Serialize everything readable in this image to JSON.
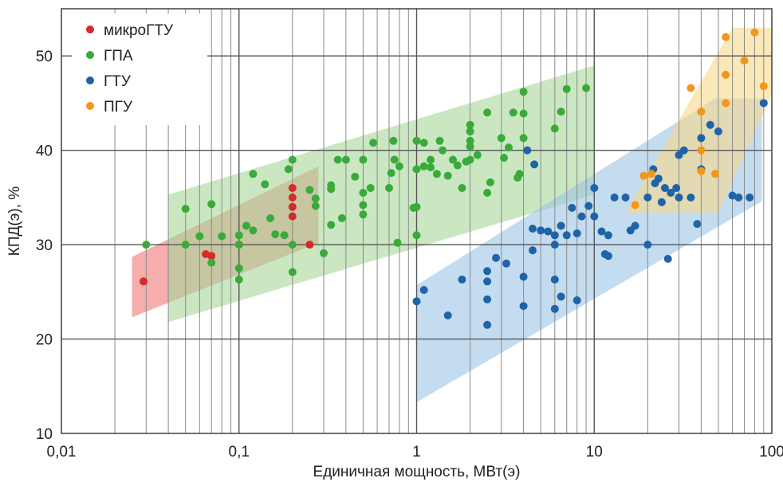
{
  "chart_data": {
    "type": "scatter",
    "xscale": "log",
    "xlim": [
      0.01,
      100
    ],
    "ylim": [
      10,
      55
    ],
    "xlabel": "Единичная мощность, МВт(э)",
    "ylabel": "КПД(э), %",
    "grid": true,
    "legend_position": "top-left",
    "x_ticks": [
      {
        "value": 0.01,
        "label": "0,01"
      },
      {
        "value": 0.1,
        "label": "0,1"
      },
      {
        "value": 1,
        "label": "1"
      },
      {
        "value": 10,
        "label": "10"
      },
      {
        "value": 100,
        "label": "100"
      }
    ],
    "y_ticks": [
      {
        "value": 10,
        "label": "10"
      },
      {
        "value": 20,
        "label": "20"
      },
      {
        "value": 30,
        "label": "30"
      },
      {
        "value": 40,
        "label": "40"
      },
      {
        "value": 50,
        "label": "50"
      }
    ],
    "series": [
      {
        "name": "микроГТУ",
        "color": "#d42a2a",
        "band_color": "#ef7777",
        "band": [
          [
            0.025,
            22.3
          ],
          [
            0.025,
            28.7
          ],
          [
            0.28,
            38.3
          ],
          [
            0.28,
            30.2
          ]
        ],
        "points": [
          [
            0.029,
            26.1
          ],
          [
            0.065,
            29.0
          ],
          [
            0.07,
            28.8
          ],
          [
            0.1,
            30.0
          ],
          [
            0.2,
            36.0
          ],
          [
            0.2,
            35.0
          ],
          [
            0.2,
            34.0
          ],
          [
            0.2,
            33.0
          ],
          [
            0.25,
            30.0
          ]
        ]
      },
      {
        "name": "ГПА",
        "color": "#3aaa3a",
        "band_color": "#a6d79a",
        "band": [
          [
            0.04,
            21.8
          ],
          [
            0.04,
            35.3
          ],
          [
            10,
            49.0
          ],
          [
            10,
            35.3
          ]
        ],
        "points": [
          [
            0.03,
            30.0
          ],
          [
            0.05,
            33.8
          ],
          [
            0.05,
            30.0
          ],
          [
            0.06,
            30.9
          ],
          [
            0.07,
            34.3
          ],
          [
            0.07,
            28.1
          ],
          [
            0.08,
            30.9
          ],
          [
            0.1,
            30.0
          ],
          [
            0.1,
            31.0
          ],
          [
            0.1,
            27.5
          ],
          [
            0.1,
            26.3
          ],
          [
            0.11,
            32.0
          ],
          [
            0.12,
            37.5
          ],
          [
            0.12,
            31.5
          ],
          [
            0.14,
            36.4
          ],
          [
            0.15,
            32.8
          ],
          [
            0.16,
            31.1
          ],
          [
            0.18,
            31.0
          ],
          [
            0.19,
            38.0
          ],
          [
            0.2,
            39.0
          ],
          [
            0.2,
            30.0
          ],
          [
            0.2,
            27.1
          ],
          [
            0.25,
            35.8
          ],
          [
            0.27,
            34.9
          ],
          [
            0.27,
            34.1
          ],
          [
            0.3,
            29.1
          ],
          [
            0.33,
            35.9
          ],
          [
            0.33,
            36.3
          ],
          [
            0.36,
            39.0
          ],
          [
            0.4,
            39.0
          ],
          [
            0.38,
            32.8
          ],
          [
            0.33,
            32.1
          ],
          [
            0.45,
            37.2
          ],
          [
            0.5,
            39.0
          ],
          [
            0.5,
            34.2
          ],
          [
            0.5,
            35.5
          ],
          [
            0.5,
            33.2
          ],
          [
            0.55,
            36.0
          ],
          [
            0.57,
            40.8
          ],
          [
            0.7,
            36.0
          ],
          [
            0.72,
            37.6
          ],
          [
            0.75,
            39.0
          ],
          [
            0.74,
            41.0
          ],
          [
            0.8,
            38.3
          ],
          [
            0.78,
            30.2
          ],
          [
            1.0,
            34.0
          ],
          [
            1.0,
            38.0
          ],
          [
            1.0,
            41.0
          ],
          [
            1.0,
            31.0
          ],
          [
            0.96,
            33.9
          ],
          [
            1.1,
            40.8
          ],
          [
            1.1,
            38.3
          ],
          [
            1.2,
            39.0
          ],
          [
            1.2,
            38.2
          ],
          [
            1.3,
            37.5
          ],
          [
            1.35,
            41.0
          ],
          [
            1.4,
            40.0
          ],
          [
            1.5,
            37.3
          ],
          [
            1.6,
            39.0
          ],
          [
            1.8,
            36.0
          ],
          [
            1.9,
            38.8
          ],
          [
            1.7,
            38.4
          ],
          [
            2.0,
            40.4
          ],
          [
            2.0,
            41.0
          ],
          [
            2.0,
            42.0
          ],
          [
            2.0,
            42.7
          ],
          [
            2.0,
            39.0
          ],
          [
            2.2,
            39.5
          ],
          [
            2.5,
            44.0
          ],
          [
            2.5,
            35.5
          ],
          [
            3.0,
            41.3
          ],
          [
            3.3,
            40.3
          ],
          [
            3.5,
            44.0
          ],
          [
            4.0,
            43.9
          ],
          [
            4.0,
            46.2
          ],
          [
            4.0,
            41.3
          ],
          [
            3.8,
            37.5
          ],
          [
            6.0,
            42.3
          ],
          [
            6.5,
            44.1
          ],
          [
            7.0,
            46.5
          ],
          [
            9.0,
            46.6
          ],
          [
            2.6,
            36.6
          ],
          [
            3.1,
            39.2
          ],
          [
            3.7,
            37.1
          ]
        ]
      },
      {
        "name": "ГТУ",
        "color": "#1f63a8",
        "band_color": "#9cc4e4",
        "band": [
          [
            1.0,
            13.3
          ],
          [
            1.0,
            25.7
          ],
          [
            48,
            45.5
          ],
          [
            88,
            45.5
          ],
          [
            88,
            34.6
          ]
        ],
        "points": [
          [
            1.0,
            24.0
          ],
          [
            1.1,
            25.2
          ],
          [
            1.5,
            22.5
          ],
          [
            1.8,
            26.3
          ],
          [
            2.5,
            21.5
          ],
          [
            2.5,
            24.2
          ],
          [
            2.5,
            26.1
          ],
          [
            2.5,
            27.2
          ],
          [
            2.8,
            28.6
          ],
          [
            3.2,
            28.0
          ],
          [
            4.0,
            23.5
          ],
          [
            4.0,
            26.6
          ],
          [
            4.2,
            40.0
          ],
          [
            4.5,
            29.4
          ],
          [
            4.5,
            31.7
          ],
          [
            4.6,
            38.5
          ],
          [
            5.0,
            31.5
          ],
          [
            5.5,
            31.4
          ],
          [
            6.0,
            30.0
          ],
          [
            6.0,
            26.3
          ],
          [
            6.0,
            23.2
          ],
          [
            6.0,
            31.0
          ],
          [
            6.5,
            32.0
          ],
          [
            6.5,
            24.5
          ],
          [
            7.0,
            31.0
          ],
          [
            7.5,
            33.9
          ],
          [
            8.0,
            31.2
          ],
          [
            8.0,
            24.1
          ],
          [
            8.5,
            33.0
          ],
          [
            9.3,
            34.1
          ],
          [
            10.0,
            33.0
          ],
          [
            10.0,
            36.0
          ],
          [
            11.0,
            31.4
          ],
          [
            11.5,
            29.0
          ],
          [
            12.0,
            28.8
          ],
          [
            12.0,
            31.0
          ],
          [
            13.0,
            35.0
          ],
          [
            15.0,
            35.0
          ],
          [
            16.0,
            31.5
          ],
          [
            17.0,
            32.0
          ],
          [
            20.0,
            30.0
          ],
          [
            20.0,
            35.0
          ],
          [
            22.0,
            36.5
          ],
          [
            23.0,
            37.0
          ],
          [
            25.0,
            36.0
          ],
          [
            26.0,
            28.5
          ],
          [
            27.0,
            35.5
          ],
          [
            29.0,
            36.0
          ],
          [
            30.0,
            35.0
          ],
          [
            30.0,
            39.5
          ],
          [
            32.0,
            40.0
          ],
          [
            35.0,
            35.0
          ],
          [
            38.0,
            32.2
          ],
          [
            40.0,
            41.3
          ],
          [
            40.0,
            38.0
          ],
          [
            45.0,
            42.7
          ],
          [
            50.0,
            42.0
          ],
          [
            60.0,
            35.2
          ],
          [
            65.0,
            35.0
          ],
          [
            75.0,
            35.0
          ],
          [
            90.0,
            45.0
          ],
          [
            21.5,
            38.0
          ],
          [
            24.0,
            34.5
          ]
        ]
      },
      {
        "name": "ПГУ",
        "color": "#f2961c",
        "band_color": "#f9d98a",
        "band": [
          [
            15,
            33.4
          ],
          [
            60,
            53.0
          ],
          [
            100,
            53.0
          ],
          [
            100,
            46.0
          ],
          [
            50,
            33.4
          ]
        ],
        "points": [
          [
            17.0,
            34.2
          ],
          [
            19.0,
            37.3
          ],
          [
            21.0,
            37.5
          ],
          [
            35.0,
            46.6
          ],
          [
            40.0,
            44.1
          ],
          [
            40.0,
            40.0
          ],
          [
            40.0,
            37.8
          ],
          [
            48.0,
            37.5
          ],
          [
            55.0,
            52.0
          ],
          [
            55.0,
            48.0
          ],
          [
            55.0,
            45.0
          ],
          [
            70.0,
            49.5
          ],
          [
            80.0,
            52.5
          ],
          [
            90.0,
            46.8
          ]
        ]
      }
    ]
  }
}
